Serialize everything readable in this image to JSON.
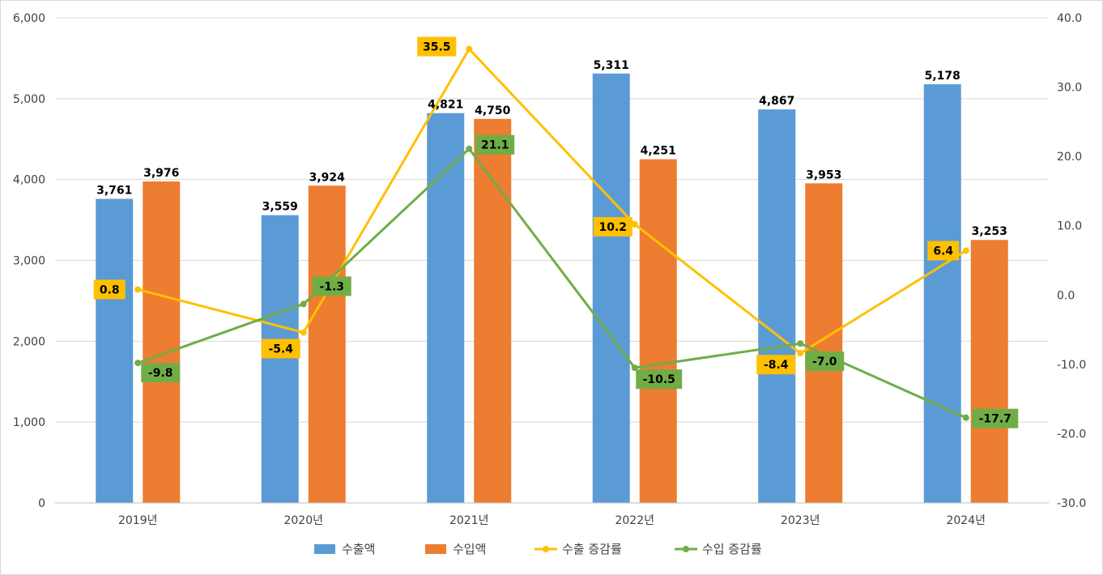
{
  "chart_data": {
    "type": "bar",
    "categories": [
      "2019년",
      "2020년",
      "2021년",
      "2022년",
      "2023년",
      "2024년"
    ],
    "series": [
      {
        "name": "수출액",
        "kind": "bar",
        "axis": "left",
        "color": "#5b9bd5",
        "values": [
          3761,
          3559,
          4821,
          5311,
          4867,
          5178
        ],
        "labels": [
          "3,761",
          "3,559",
          "4,821",
          "5,311",
          "4,867",
          "5,178"
        ]
      },
      {
        "name": "수입액",
        "kind": "bar",
        "axis": "left",
        "color": "#ed7d31",
        "values": [
          3976,
          3924,
          4750,
          4251,
          3953,
          3253
        ],
        "labels": [
          "3,976",
          "3,924",
          "4,750",
          "4,251",
          "3,953",
          "3,253"
        ]
      },
      {
        "name": "수출 증감률",
        "kind": "line",
        "axis": "right",
        "color": "#ffc000",
        "values": [
          0.8,
          -5.4,
          35.5,
          10.2,
          -8.4,
          6.4
        ],
        "labels": [
          "0.8",
          "-5.4",
          "35.5",
          "10.2",
          "-8.4",
          "6.4"
        ]
      },
      {
        "name": "수입 증감률",
        "kind": "line",
        "axis": "right",
        "color": "#70ad47",
        "values": [
          -9.8,
          -1.3,
          21.1,
          -10.5,
          -7.0,
          -17.7
        ],
        "labels": [
          "-9.8",
          "-1.3",
          "21.1",
          "-10.5",
          "-7.0",
          "-17.7"
        ]
      }
    ],
    "y_left": {
      "min": 0,
      "max": 6000,
      "ticks": [
        "0",
        "1,000",
        "2,000",
        "3,000",
        "4,000",
        "5,000",
        "6,000"
      ]
    },
    "y_right": {
      "min": -30,
      "max": 40,
      "ticks": [
        "-30.0",
        "-20.0",
        "-10.0",
        "0.0",
        "10.0",
        "20.0",
        "30.0",
        "40.0"
      ]
    },
    "grid": true,
    "legend_position": "bottom-center",
    "title": "",
    "xlabel": "",
    "ylabel": ""
  }
}
